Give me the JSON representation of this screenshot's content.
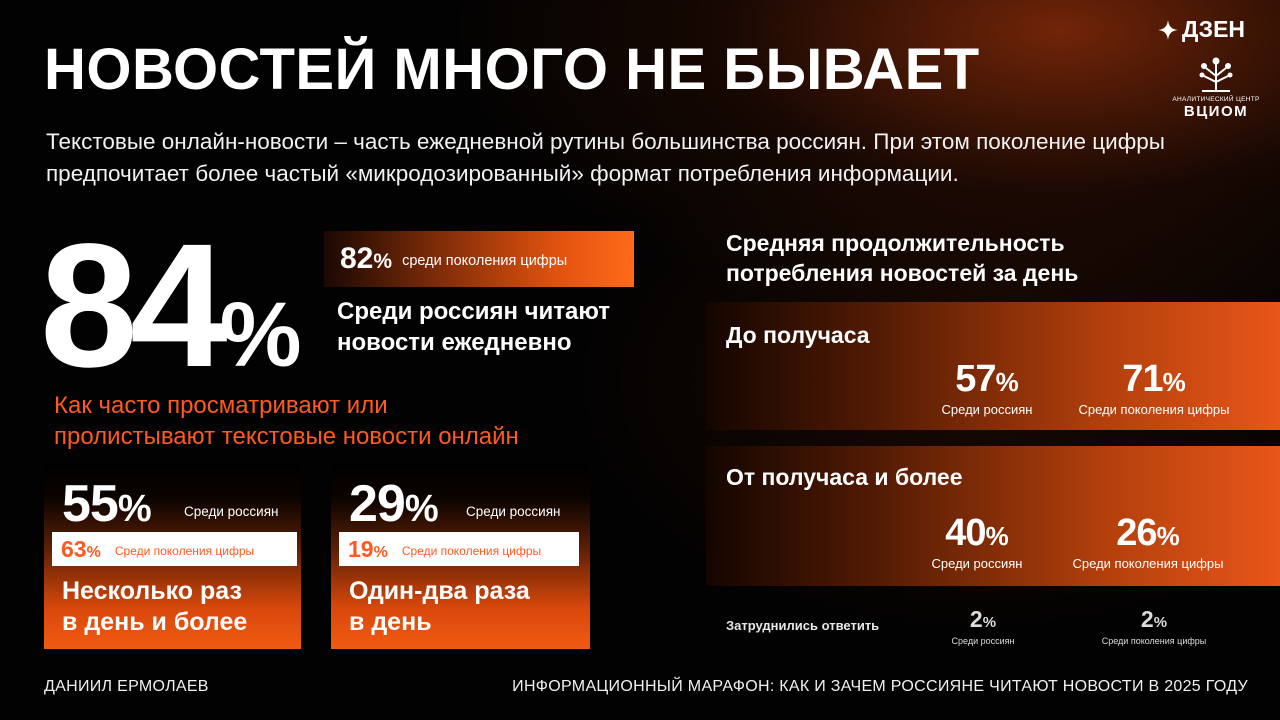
{
  "brand": {
    "dzen": "ДЗЕН",
    "vciom_center": "АНАЛИТИЧЕСКИЙ ЦЕНТР",
    "vciom_name": "ВЦИОМ"
  },
  "header": {
    "title": "НОВОСТЕЙ МНОГО НЕ БЫВАЕТ",
    "subtitle": "Текстовые онлайн-новости – часть ежедневной рутины большинства россиян. При этом поколение цифры предпочитает более частый «микродозированный» формат потребления информации."
  },
  "daily": {
    "value": "84",
    "unit": "%",
    "desc_line1": "Среди россиян читают",
    "desc_line2": "новости ежедневно",
    "gen_value": "82",
    "gen_unit": "%",
    "gen_label": "среди поколения цифры"
  },
  "frequency": {
    "title_line1": "Как часто просматривают или",
    "title_line2": "пролистывают текстовые новости онлайн",
    "cards": [
      {
        "value": "55",
        "unit": "%",
        "label": "Среди россиян",
        "gen_value": "63",
        "gen_unit": "%",
        "gen_label": "Среди поколения цифры",
        "caption_line1": "Несколько раз",
        "caption_line2": "в день и более"
      },
      {
        "value": "29",
        "unit": "%",
        "label": "Среди россиян",
        "gen_value": "19",
        "gen_unit": "%",
        "gen_label": "Среди поколения цифры",
        "caption_line1": "Один-два раза",
        "caption_line2": "в день"
      }
    ]
  },
  "duration": {
    "title_line1": "Средняя продолжительность",
    "title_line2": "потребления новостей за день",
    "groups": [
      {
        "heading": "До получаса",
        "russians_value": "57",
        "russians_unit": "%",
        "russians_label": "Среди россиян",
        "gen_value": "71",
        "gen_unit": "%",
        "gen_label": "Среди поколения цифры"
      },
      {
        "heading": "От получаса и более",
        "russians_value": "40",
        "russians_unit": "%",
        "russians_label": "Среди россиян",
        "gen_value": "26",
        "gen_unit": "%",
        "gen_label": "Среди поколения цифры"
      }
    ],
    "hard": {
      "label": "Затруднились ответить",
      "russians_value": "2",
      "russians_unit": "%",
      "russians_label": "Среди россиян",
      "gen_value": "2",
      "gen_unit": "%",
      "gen_label": "Среди поколения цифры"
    }
  },
  "footer": {
    "author": "ДАНИИЛ ЕРМОЛАЕВ",
    "event": "ИНФОРМАЦИОННЫЙ МАРАФОН: КАК И ЗАЧЕМ РОССИЯНЕ ЧИТАЮТ НОВОСТИ В 2025 ГОДУ"
  },
  "colors": {
    "accent": "#ff5a1f",
    "panel_gradient_end": "#e8561a",
    "background": "#020202"
  }
}
